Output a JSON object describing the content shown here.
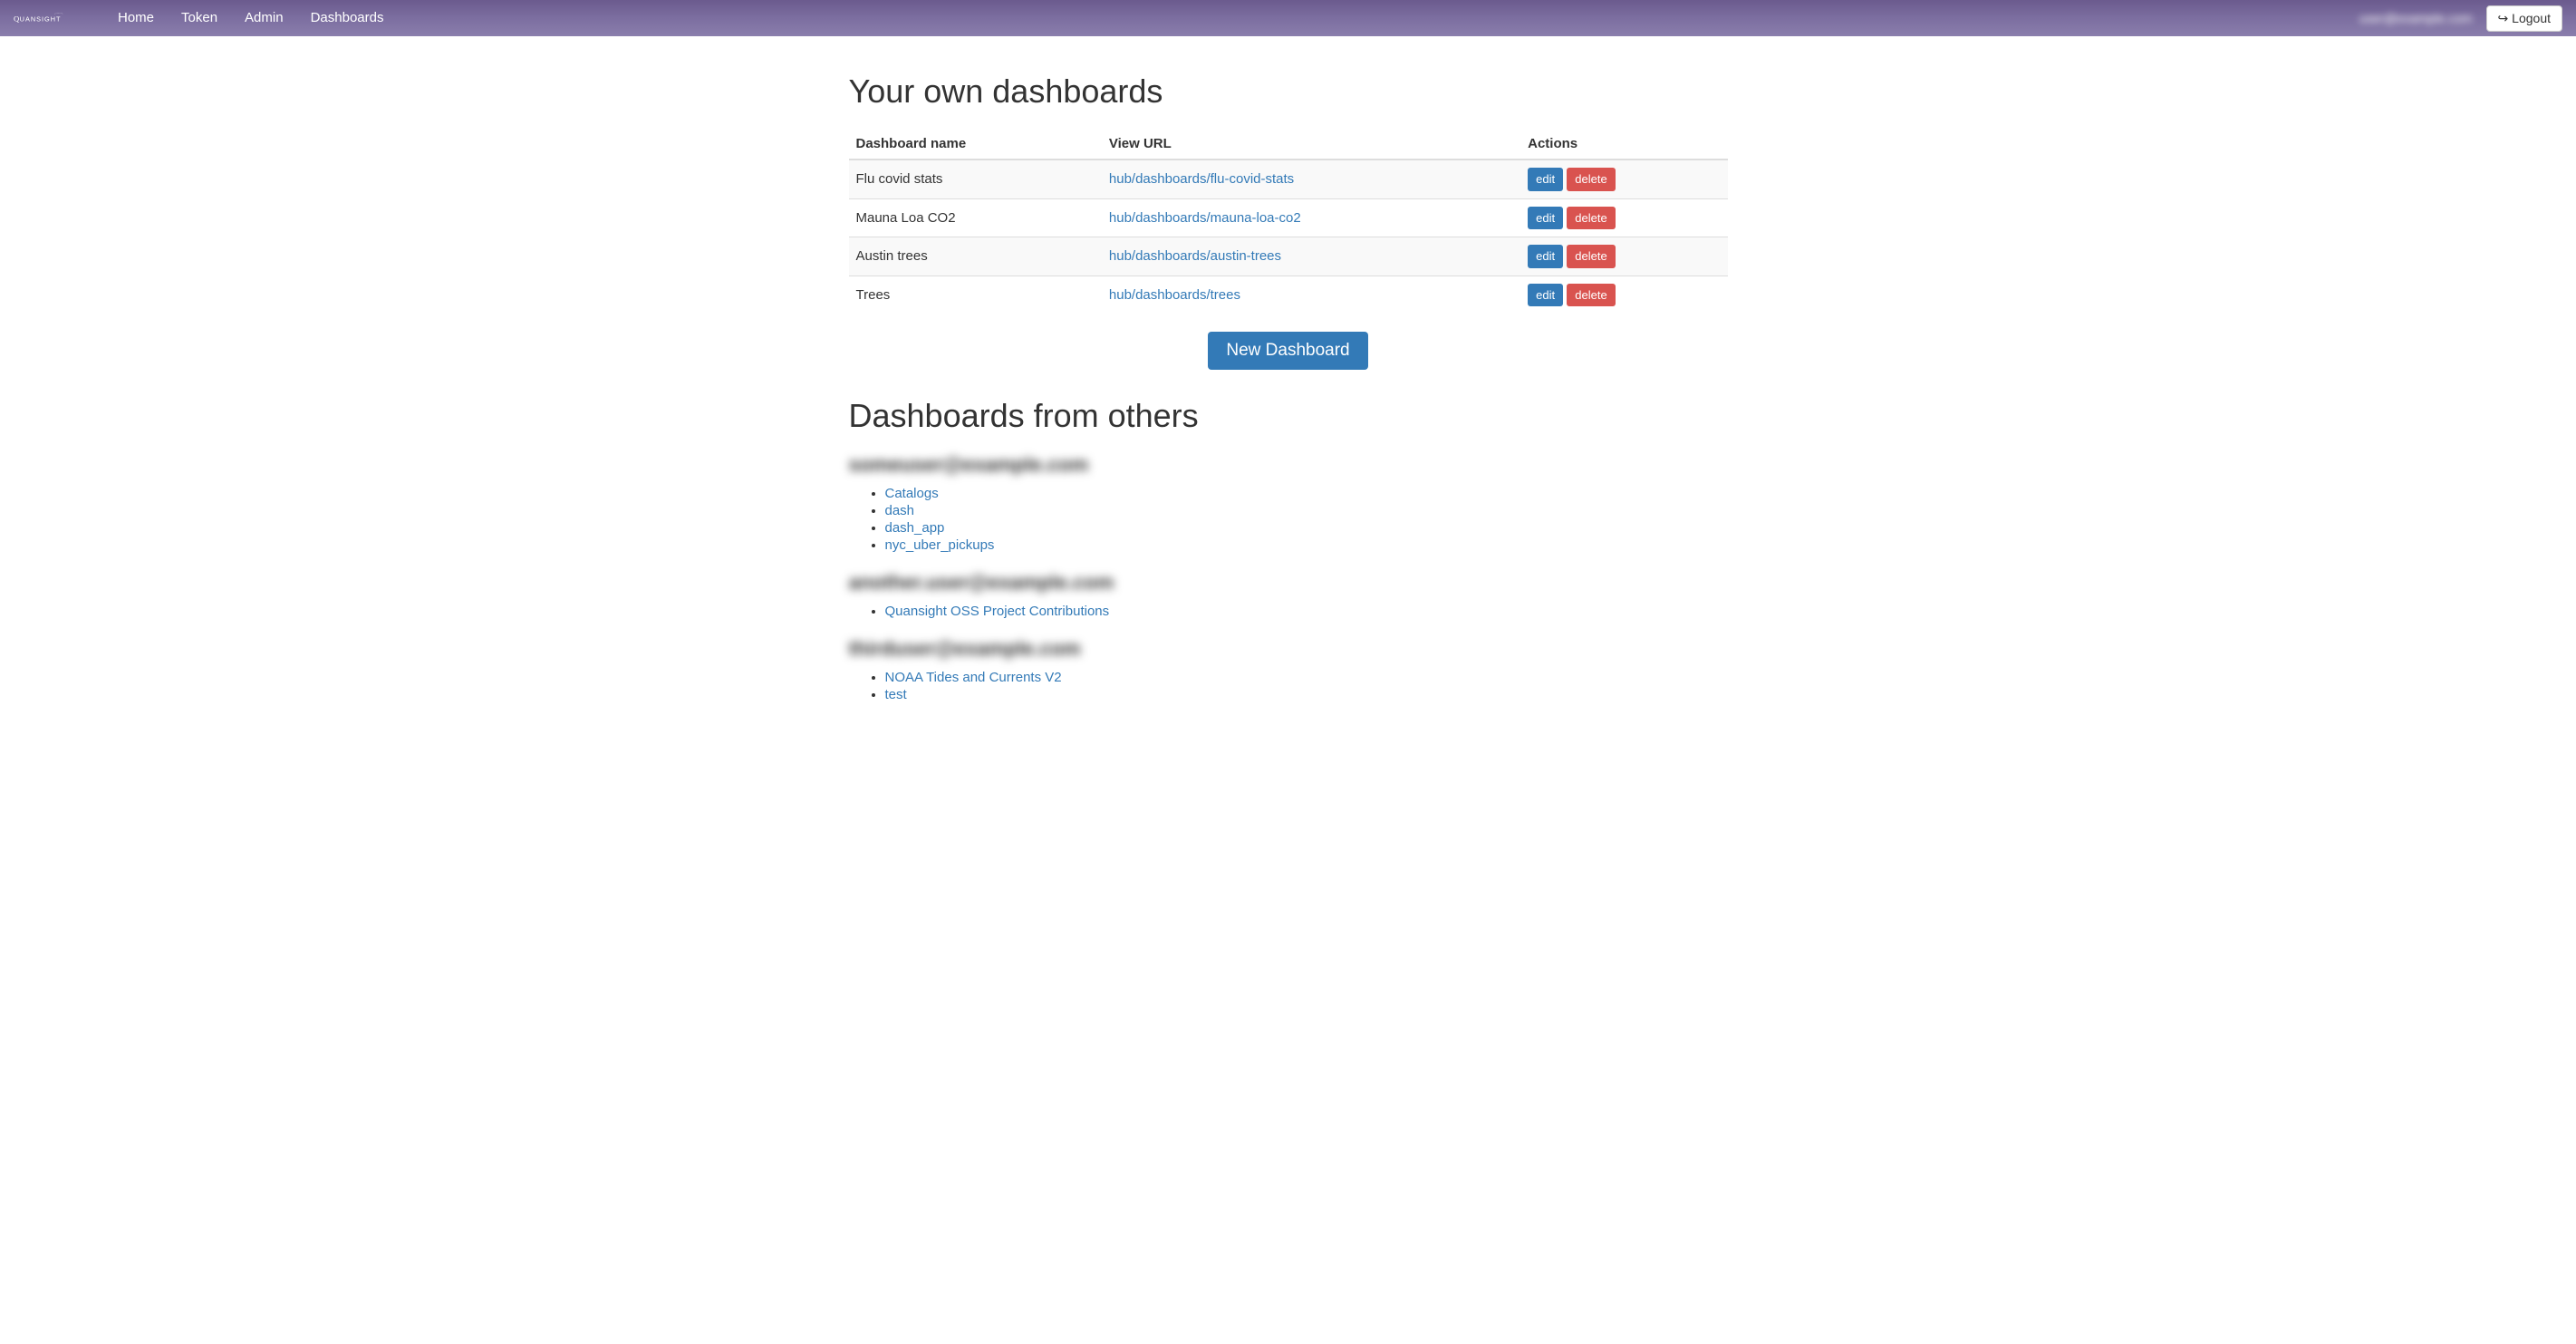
{
  "navbar": {
    "brand": "QUANSIGHT",
    "links": [
      "Home",
      "Token",
      "Admin",
      "Dashboards"
    ],
    "user": "user@example.com",
    "logout_label": "Logout"
  },
  "sections": {
    "own_title": "Your own dashboards",
    "others_title": "Dashboards from others",
    "new_button": "New Dashboard"
  },
  "table": {
    "headers": [
      "Dashboard name",
      "View URL",
      "Actions"
    ],
    "edit_label": "edit",
    "delete_label": "delete",
    "rows": [
      {
        "name": "Flu covid stats",
        "url": "hub/dashboards/flu-covid-stats"
      },
      {
        "name": "Mauna Loa CO2",
        "url": "hub/dashboards/mauna-loa-co2"
      },
      {
        "name": "Austin trees",
        "url": "hub/dashboards/austin-trees"
      },
      {
        "name": "Trees",
        "url": "hub/dashboards/trees"
      }
    ]
  },
  "others": [
    {
      "user": "someuser@example.com",
      "dashboards": [
        "Catalogs",
        "dash",
        "dash_app",
        "nyc_uber_pickups"
      ]
    },
    {
      "user": "another.user@example.com",
      "dashboards": [
        "Quansight OSS Project Contributions"
      ]
    },
    {
      "user": "thirduser@example.com",
      "dashboards": [
        "NOAA Tides and Currents V2",
        "test"
      ]
    }
  ],
  "colors": {
    "navbar_bg": "#7c6ea0",
    "link": "#337ab7",
    "btn_primary": "#337ab7",
    "btn_danger": "#d9534f",
    "row_stripe": "#f9f9f9",
    "border": "#ddd"
  }
}
